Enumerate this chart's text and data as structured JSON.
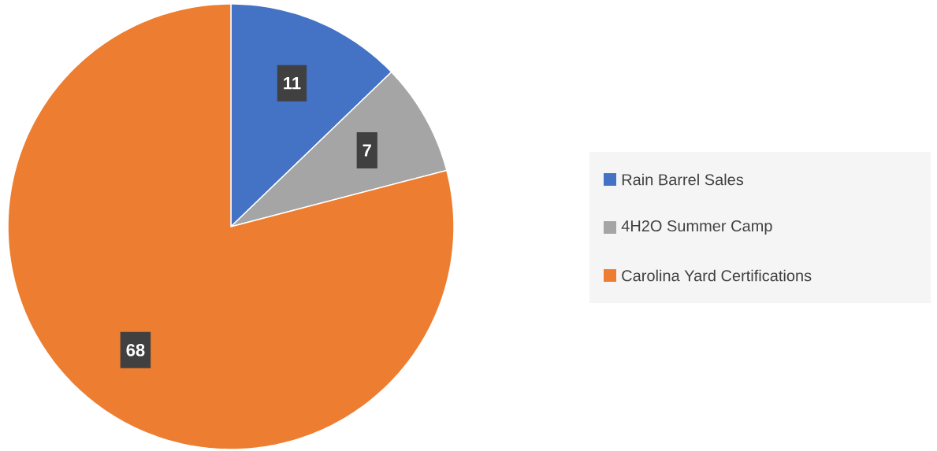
{
  "chart_data": {
    "type": "pie",
    "categories": [
      "Rain Barrel Sales",
      "4H2O Summer Camp",
      "Carolina Yard Certifications"
    ],
    "values": [
      11,
      7,
      68
    ],
    "colors": [
      "#4472c4",
      "#a5a5a5",
      "#ed7d31"
    ],
    "data_labels": true,
    "legend": "right"
  }
}
